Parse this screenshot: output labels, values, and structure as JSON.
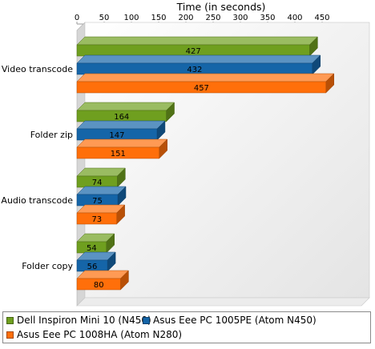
{
  "chart_data": {
    "type": "bar",
    "orientation": "horizontal",
    "title": "",
    "xlabel": "Time (in seconds)",
    "ylabel": "",
    "xlim": [
      0,
      470
    ],
    "x_ticks": [
      0,
      50,
      100,
      150,
      200,
      250,
      300,
      350,
      400,
      450
    ],
    "x_axis_position": "top",
    "categories": [
      "Video transcode",
      "Folder zip",
      "Audio transcode",
      "Folder copy"
    ],
    "series": [
      {
        "name": "Dell Inspiron Mini 10 (N450)",
        "color": "#6f9f1f",
        "values": [
          427,
          164,
          74,
          54
        ]
      },
      {
        "name": "Asus Eee PC 1005PE (Atom N450)",
        "color": "#1565a8",
        "values": [
          432,
          147,
          75,
          56
        ]
      },
      {
        "name": "Asus Eee PC 1008HA (Atom N280)",
        "color": "#ff6f0a",
        "values": [
          457,
          151,
          73,
          80
        ]
      }
    ],
    "data_labels": true,
    "grid": false,
    "legend_position": "bottom",
    "style": "3d"
  }
}
